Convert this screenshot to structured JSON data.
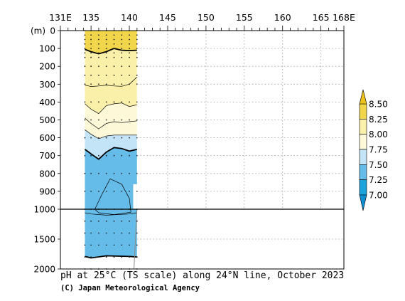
{
  "chart_data": {
    "type": "heatmap",
    "title": "pH at 25°C (TS scale) along 24°N line, October 2023",
    "credit": "(C) Japan Meteorological Agency",
    "x_axis": {
      "range": [
        131,
        168
      ],
      "ticks": [
        {
          "value": 131,
          "label": "131E"
        },
        {
          "value": 135,
          "label": "135"
        },
        {
          "value": 140,
          "label": "140"
        },
        {
          "value": 145,
          "label": "145"
        },
        {
          "value": 150,
          "label": "150"
        },
        {
          "value": 155,
          "label": "155"
        },
        {
          "value": 160,
          "label": "160"
        },
        {
          "value": 165,
          "label": "165"
        },
        {
          "value": 168,
          "label": "168E"
        }
      ]
    },
    "y_axis": {
      "unit_label": "(m)",
      "upper_ticks": [
        0,
        100,
        200,
        300,
        400,
        500,
        600,
        700,
        800,
        900,
        1000
      ],
      "lower_ticks": [
        1500,
        2000
      ],
      "range": [
        0,
        2000
      ],
      "note": "0–1000 m linear upper panel, 1000–2000 m compressed lower panel"
    },
    "colorbar": {
      "levels": [
        7.0,
        7.25,
        7.5,
        7.75,
        8.0,
        8.25,
        8.5
      ],
      "labels": [
        "7.00",
        "7.25",
        "7.50",
        "7.75",
        "8.00",
        "8.25",
        "8.50"
      ],
      "colors": [
        "#1aa3dc",
        "#66bce8",
        "#c3e3f6",
        "#fdf8d8",
        "#faf0a9",
        "#f1d64b"
      ]
    },
    "stations_lon": [
      134.2,
      135.0,
      136.0,
      137.0,
      138.0,
      139.0,
      140.0,
      141.0
    ],
    "cast_depths": [
      0,
      25,
      50,
      75,
      100,
      125,
      150,
      200,
      250,
      300,
      400,
      500,
      600,
      700,
      800,
      900,
      1000,
      1200,
      1400,
      1600,
      1800,
      2000
    ],
    "section": {
      "lon_range": [
        134.2,
        141.0
      ],
      "contour_850": [
        [
          134.2,
          105
        ],
        [
          135,
          118
        ],
        [
          136,
          130
        ],
        [
          137,
          118
        ],
        [
          138,
          100
        ],
        [
          139,
          110
        ],
        [
          140,
          112
        ],
        [
          141,
          110
        ]
      ],
      "contour_825": [
        [
          134.2,
          305
        ],
        [
          135,
          313
        ],
        [
          136,
          310
        ],
        [
          137,
          305
        ],
        [
          138,
          310
        ],
        [
          139,
          312
        ],
        [
          140,
          300
        ],
        [
          141,
          260
        ]
      ],
      "contour_800": [
        [
          134.2,
          410
        ],
        [
          135,
          440
        ],
        [
          136,
          465
        ],
        [
          137,
          420
        ],
        [
          138,
          410
        ],
        [
          139,
          405
        ],
        [
          140,
          425
        ],
        [
          141,
          415
        ]
      ],
      "contour_787": [
        [
          134.2,
          490
        ],
        [
          135,
          520
        ],
        [
          136,
          550
        ],
        [
          137,
          520
        ],
        [
          138,
          510
        ],
        [
          139,
          515
        ],
        [
          140,
          510
        ],
        [
          141,
          505
        ]
      ],
      "contour_775": [
        [
          134.2,
          555
        ],
        [
          135,
          580
        ],
        [
          136,
          605
        ],
        [
          137,
          590
        ],
        [
          138,
          585
        ],
        [
          139,
          585
        ],
        [
          140,
          585
        ],
        [
          141,
          585
        ]
      ],
      "contour_762": [
        [
          134.2,
          665
        ],
        [
          135,
          690
        ],
        [
          136,
          720
        ],
        [
          137,
          680
        ],
        [
          138,
          655
        ],
        [
          139,
          660
        ],
        [
          140,
          675
        ],
        [
          141,
          665
        ]
      ],
      "contour_750_loop": [
        [
          135.5,
          1000
        ],
        [
          136.5,
          910
        ],
        [
          137.5,
          830
        ],
        [
          139,
          860
        ],
        [
          140,
          940
        ],
        [
          140.2,
          1050
        ],
        [
          138,
          1090
        ],
        [
          136,
          1060
        ],
        [
          135.5,
          1000
        ]
      ],
      "contour_737_deep": [
        [
          134.2,
          1060
        ],
        [
          135,
          1080
        ],
        [
          137,
          1100
        ],
        [
          140,
          1080
        ],
        [
          141,
          1060
        ]
      ],
      "contour_725_deep": [
        [
          134.2,
          1790
        ],
        [
          135,
          1815
        ],
        [
          137,
          1780
        ],
        [
          140,
          1790
        ],
        [
          141,
          1800
        ]
      ]
    }
  }
}
